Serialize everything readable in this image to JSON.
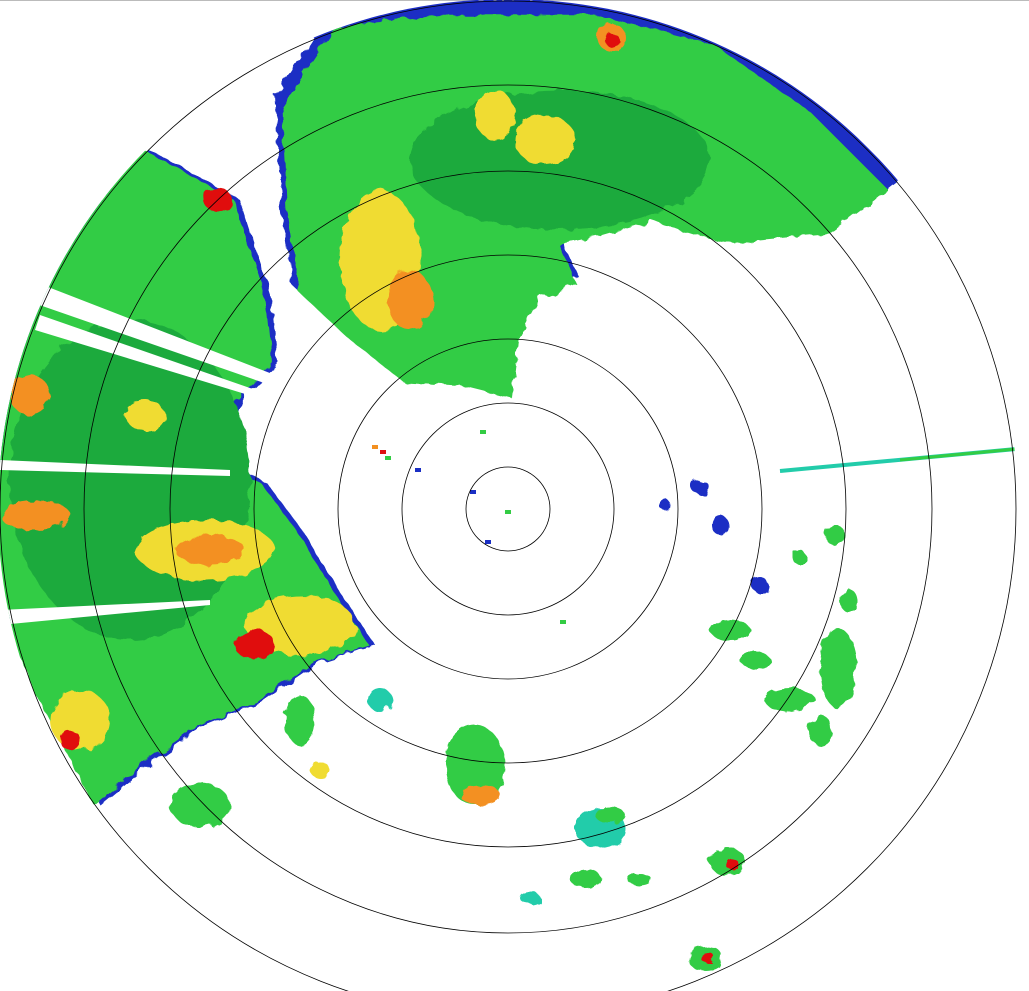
{
  "display": {
    "type": "radar-ppi-reflectivity",
    "range_rings": 7,
    "colors": {
      "background": "#ffffff",
      "ring": "#000000",
      "weak_blue": "#1a2fc4",
      "cyan": "#22ccaa",
      "light_green": "#33cc44",
      "green": "#1faa3c",
      "yellow": "#f0dc30",
      "orange": "#f39020",
      "red": "#e01010"
    }
  }
}
